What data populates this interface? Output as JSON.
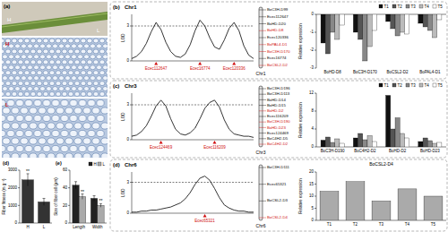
{
  "chart_data": [
    {
      "type": "bar",
      "y_label": "Fiber fitness (m g⁻¹)",
      "categories": [
        "H",
        "L"
      ],
      "values": [
        2450,
        1200
      ],
      "errors": [
        350,
        200
      ],
      "significance": [
        "**",
        null
      ],
      "color": "#333333",
      "ylim": [
        0,
        3000
      ],
      "yticks": [
        0,
        1000,
        2000,
        3000
      ],
      "grid": false
    },
    {
      "type": "bar",
      "y_label": "Size of fiber cell (μm)",
      "categories": [
        "Length",
        "Width"
      ],
      "series": [
        {
          "name": "H",
          "color": "#222222",
          "values": [
            43,
            28
          ],
          "errors": [
            4,
            3
          ]
        },
        {
          "name": "L",
          "color": "#aaaaaa",
          "values": [
            30,
            20
          ],
          "errors": [
            3,
            2
          ],
          "significance": [
            "**",
            "**"
          ]
        }
      ],
      "ylim": [
        0,
        60
      ],
      "yticks": [
        0,
        20,
        40,
        60
      ],
      "legend": "top",
      "grid": false
    },
    {
      "type": "line",
      "title": "Chr1",
      "y_label": "LOD",
      "x": [
        0,
        4,
        8,
        12,
        16,
        20,
        24,
        28,
        32,
        36,
        40,
        44,
        48,
        52,
        56,
        60,
        64,
        68,
        72,
        76,
        80,
        84,
        88,
        92,
        96,
        100
      ],
      "values": [
        0.2,
        0.4,
        0.8,
        1.5,
        2.5,
        3.3,
        2.7,
        1.6,
        0.8,
        0.4,
        0.3,
        0.6,
        1.4,
        2.6,
        3.5,
        3.0,
        2.0,
        1.2,
        1.0,
        1.8,
        2.8,
        3.3,
        2.6,
        1.3,
        0.5,
        0.2
      ],
      "threshold": 3,
      "xlim": [
        0,
        100
      ],
      "xticks": [
        {
          "value": 20,
          "label": "Ecec112647"
        },
        {
          "value": 56,
          "label": "Ecec16774"
        },
        {
          "value": 84,
          "label": "Ecec120336"
        }
      ],
      "ylim": [
        0,
        4
      ],
      "yticks": [
        0,
        3
      ],
      "color": "#000000",
      "line_style": "solid",
      "grid": false
    },
    {
      "type": "bar",
      "y_label": "Relative expression",
      "categories": [
        "BoHD-D8",
        "BoC3H-D170",
        "BoCSL2-D2",
        "BoPAL4-D1"
      ],
      "series": [
        {
          "name": "T1",
          "color": "#111111",
          "values": [
            -1.6,
            -1.0,
            -0.4,
            -0.5
          ]
        },
        {
          "name": "T2",
          "color": "#555555",
          "values": [
            -2.2,
            -1.4,
            -0.8,
            -0.7
          ]
        },
        {
          "name": "T3",
          "color": "#888888",
          "values": [
            -1.0,
            -2.6,
            -1.2,
            -0.9
          ]
        },
        {
          "name": "T4",
          "color": "#bbbbbb",
          "values": [
            -1.4,
            -1.8,
            -1.0,
            -1.3
          ]
        },
        {
          "name": "T5",
          "color": "#ffffff",
          "values": [
            -0.6,
            -0.9,
            -1.1,
            -0.3
          ]
        }
      ],
      "ylim": [
        -3,
        0
      ],
      "yticks": [
        -3,
        -2,
        -1,
        0
      ],
      "legend": "top",
      "grid": false
    },
    {
      "type": "line",
      "title": "Chr3",
      "y_label": "LOD",
      "x": [
        0,
        4,
        8,
        12,
        16,
        20,
        24,
        28,
        32,
        36,
        40,
        44,
        48,
        52,
        56,
        60,
        64,
        68,
        72,
        76,
        80,
        84,
        88,
        92,
        96,
        100
      ],
      "values": [
        0.3,
        0.4,
        0.7,
        1.2,
        2.0,
        2.9,
        3.4,
        2.9,
        1.8,
        0.9,
        0.5,
        0.4,
        0.6,
        1.0,
        1.8,
        2.7,
        3.2,
        3.4,
        2.8,
        1.7,
        0.9,
        0.5,
        0.4,
        0.3,
        0.3,
        0.2
      ],
      "threshold": 3,
      "xlim": [
        0,
        100
      ],
      "xticks": [
        {
          "value": 24,
          "label": "Ecec124469"
        },
        {
          "value": 68,
          "label": "Ecec116209"
        }
      ],
      "ylim": [
        0,
        4
      ],
      "yticks": [
        0,
        3
      ],
      "color": "#000000",
      "line_style": "solid",
      "grid": false
    },
    {
      "type": "bar",
      "y_label": "Relative expression",
      "categories": [
        "BoC3H-D190",
        "BoC4H2-D2",
        "BoHD-D2",
        "BoHD-D23"
      ],
      "series": [
        {
          "name": "T1",
          "color": "#111111",
          "values": [
            1.5,
            2.0,
            11.5,
            1.2
          ]
        },
        {
          "name": "T2",
          "color": "#555555",
          "values": [
            2.2,
            3.0,
            4.0,
            2.0
          ]
        },
        {
          "name": "T3",
          "color": "#888888",
          "values": [
            1.0,
            1.6,
            6.5,
            1.4
          ]
        },
        {
          "name": "T4",
          "color": "#bbbbbb",
          "values": [
            1.8,
            2.5,
            3.0,
            0.8
          ]
        },
        {
          "name": "T5",
          "color": "#ffffff",
          "values": [
            0.8,
            1.2,
            2.0,
            1.0
          ]
        }
      ],
      "ylim": [
        0,
        12
      ],
      "yticks": [
        0,
        4,
        8,
        12
      ],
      "legend": "top",
      "grid": false
    },
    {
      "type": "line",
      "title": "Chr6",
      "y_label": "LOD",
      "x": [
        0,
        4,
        8,
        12,
        16,
        20,
        24,
        28,
        32,
        36,
        40,
        44,
        48,
        52,
        56,
        60,
        64,
        68,
        72,
        76,
        80,
        84,
        88,
        92,
        96,
        100
      ],
      "values": [
        0.1,
        0.1,
        0.2,
        0.2,
        0.3,
        0.3,
        0.4,
        0.5,
        0.6,
        0.8,
        1.0,
        1.4,
        2.0,
        2.8,
        3.4,
        3.6,
        3.2,
        2.4,
        1.5,
        0.8,
        0.5,
        0.3,
        0.2,
        0.2,
        0.1,
        0.1
      ],
      "threshold": 3,
      "xlim": [
        0,
        100
      ],
      "xticks": [
        {
          "value": 60,
          "label": "Ecec65321"
        }
      ],
      "ylim": [
        0,
        4
      ],
      "yticks": [
        0,
        3
      ],
      "color": "#000000",
      "line_style": "solid",
      "grid": false
    },
    {
      "type": "bar",
      "y_label": "Relative expression",
      "title": "BoCSL2-D4",
      "categories": [
        "T1",
        "T2",
        "T3",
        "T4",
        "T5"
      ],
      "values": [
        12,
        16,
        8,
        13,
        10
      ],
      "color": "#aaaaaa",
      "ylim": [
        0,
        20
      ],
      "yticks": [
        0,
        5,
        10,
        15,
        20
      ],
      "grid": false
    }
  ],
  "diagram": {
    "panel_labels": {
      "a": "(a)",
      "b": "(b)",
      "c": "(c)",
      "d": "(d)",
      "fiber": "(d)",
      "cell": "(e)"
    },
    "photo_labels": {
      "stem": [
        "H",
        "L"
      ],
      "sections": [
        "H",
        "L"
      ]
    },
    "chromosomes": [
      {
        "name": "Chr1",
        "markers": [
          {
            "label": "BoC3H-D99",
            "highlight": false
          },
          {
            "label": "Ecec112647",
            "highlight": false
          },
          {
            "label": "BoHD-D20",
            "highlight": false
          },
          {
            "label": "BoHD-D8",
            "highlight": true
          },
          {
            "label": "Ecec120336",
            "highlight": false
          },
          {
            "label": "BoPAL4-D1",
            "highlight": true
          },
          {
            "label": "BoC3H-D170",
            "highlight": true
          },
          {
            "label": "Ecec16774",
            "highlight": false
          },
          {
            "label": "BoCSL2-D2",
            "highlight": true
          }
        ]
      },
      {
        "name": "Chr3",
        "markers": [
          {
            "label": "BoC3H-D196",
            "highlight": false
          },
          {
            "label": "BoC3H-D113",
            "highlight": false
          },
          {
            "label": "BoHD-D14",
            "highlight": false
          },
          {
            "label": "BoHD-D15",
            "highlight": false
          },
          {
            "label": "BoHD-D2",
            "highlight": true
          },
          {
            "label": "Ecec116209",
            "highlight": false
          },
          {
            "label": "BoC3H-D190",
            "highlight": true
          },
          {
            "label": "BoHD-D23",
            "highlight": true
          },
          {
            "label": "Ecec124469",
            "highlight": false
          },
          {
            "label": "BoC4H2-D5",
            "highlight": false
          },
          {
            "label": "BoC4H2-D2",
            "highlight": true
          }
        ]
      },
      {
        "name": "Chr6",
        "markers": [
          {
            "label": "BoC3H-D111",
            "highlight": false
          },
          {
            "label": "Ecec65321",
            "highlight": false
          },
          {
            "label": "BoCSL2-D3",
            "highlight": false
          },
          {
            "label": "BoCSL2-D4",
            "highlight": true
          }
        ]
      }
    ]
  }
}
